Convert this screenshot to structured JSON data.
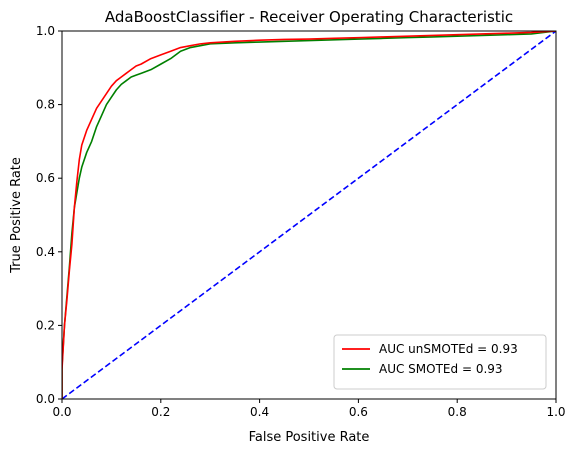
{
  "chart_data": {
    "type": "line",
    "title": "AdaBoostClassifier - Receiver Operating Characteristic",
    "xlabel": "False Positive Rate",
    "ylabel": "True Positive Rate",
    "xlim": [
      0,
      1
    ],
    "ylim": [
      0,
      1
    ],
    "xticks": [
      0.0,
      0.2,
      0.4,
      0.6,
      0.8,
      1.0
    ],
    "yticks": [
      0.0,
      0.2,
      0.4,
      0.6,
      0.8,
      1.0
    ],
    "tick_labels": [
      "0.0",
      "0.2",
      "0.4",
      "0.6",
      "0.8",
      "1.0"
    ],
    "grid": false,
    "legend_position": "lower-right",
    "series": [
      {
        "name": "AUC unSMOTEd = 0.93",
        "color": "#ff0000",
        "x": [
          0.0,
          0.0,
          0.005,
          0.01,
          0.015,
          0.02,
          0.025,
          0.03,
          0.035,
          0.04,
          0.05,
          0.06,
          0.07,
          0.08,
          0.09,
          0.1,
          0.11,
          0.12,
          0.13,
          0.14,
          0.15,
          0.16,
          0.18,
          0.2,
          0.22,
          0.24,
          0.26,
          0.28,
          0.3,
          0.35,
          0.4,
          0.45,
          0.5,
          0.55,
          0.6,
          0.65,
          0.7,
          0.75,
          0.8,
          0.85,
          0.9,
          0.95,
          1.0
        ],
        "y": [
          0.0,
          0.08,
          0.2,
          0.27,
          0.35,
          0.42,
          0.52,
          0.59,
          0.65,
          0.69,
          0.73,
          0.76,
          0.79,
          0.81,
          0.83,
          0.85,
          0.865,
          0.875,
          0.885,
          0.895,
          0.905,
          0.91,
          0.925,
          0.935,
          0.945,
          0.955,
          0.96,
          0.965,
          0.968,
          0.972,
          0.975,
          0.977,
          0.978,
          0.98,
          0.982,
          0.984,
          0.986,
          0.988,
          0.99,
          0.992,
          0.994,
          0.996,
          1.0
        ]
      },
      {
        "name": "AUC SMOTEd = 0.93",
        "color": "#008000",
        "x": [
          0.0,
          0.0,
          0.005,
          0.01,
          0.015,
          0.02,
          0.025,
          0.03,
          0.035,
          0.04,
          0.05,
          0.06,
          0.07,
          0.08,
          0.09,
          0.1,
          0.11,
          0.12,
          0.13,
          0.14,
          0.15,
          0.16,
          0.18,
          0.2,
          0.22,
          0.24,
          0.26,
          0.28,
          0.3,
          0.35,
          0.4,
          0.45,
          0.5,
          0.55,
          0.6,
          0.65,
          0.7,
          0.75,
          0.8,
          0.85,
          0.9,
          0.95,
          1.0
        ],
        "y": [
          0.0,
          0.09,
          0.2,
          0.28,
          0.36,
          0.45,
          0.52,
          0.56,
          0.6,
          0.63,
          0.67,
          0.7,
          0.74,
          0.77,
          0.8,
          0.82,
          0.84,
          0.855,
          0.865,
          0.875,
          0.88,
          0.885,
          0.895,
          0.91,
          0.925,
          0.945,
          0.955,
          0.96,
          0.965,
          0.968,
          0.97,
          0.972,
          0.974,
          0.976,
          0.978,
          0.98,
          0.982,
          0.984,
          0.986,
          0.988,
          0.99,
          0.992,
          1.0
        ]
      },
      {
        "name": "",
        "color": "#0000ff",
        "dashed": true,
        "x": [
          0,
          1
        ],
        "y": [
          0,
          1
        ]
      }
    ]
  }
}
